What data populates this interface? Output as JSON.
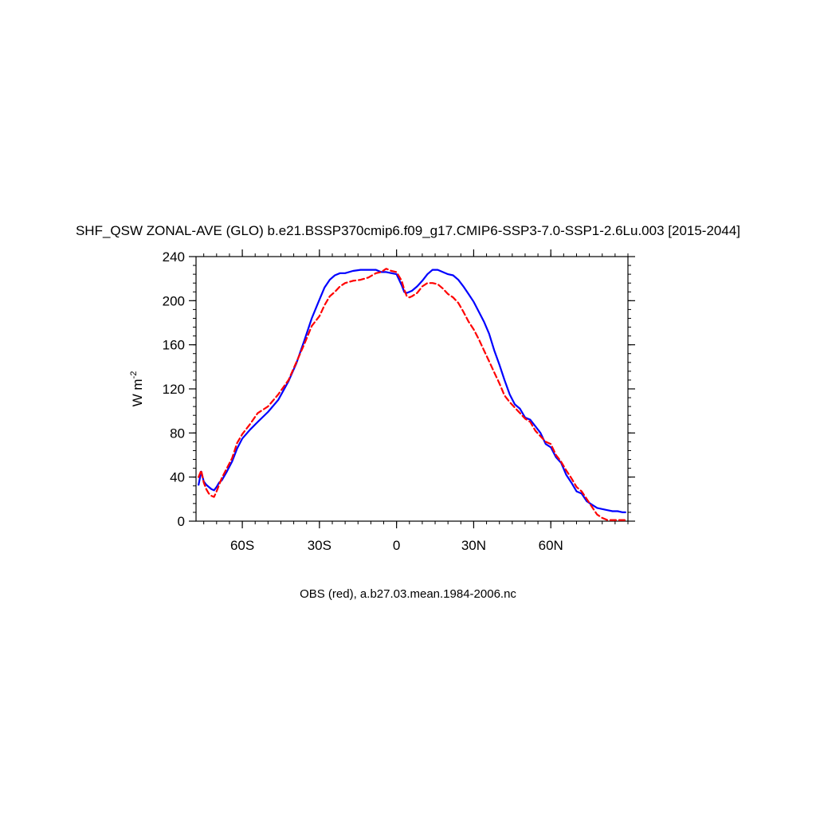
{
  "chart_data": {
    "type": "line",
    "title": "SHF_QSW ZONAL-AVE (GLO) b.e21.BSSP370cmip6.f09_g17.CMIP6-SSP3-7.0-SSP1-2.6Lu.003 [2015-2044]",
    "subtitle": "OBS (red), a.b27.03.mean.1984-2006.nc",
    "ylabel": "W m",
    "ylabel_exp": "-2",
    "xlim": [
      -78,
      90
    ],
    "ylim": [
      0,
      240
    ],
    "x_ticks": [
      {
        "value": -60,
        "label": "60S"
      },
      {
        "value": -30,
        "label": "30S"
      },
      {
        "value": 0,
        "label": "0"
      },
      {
        "value": 30,
        "label": "30N"
      },
      {
        "value": 60,
        "label": "60N"
      }
    ],
    "y_ticks": [
      {
        "value": 0,
        "label": "0"
      },
      {
        "value": 40,
        "label": "40"
      },
      {
        "value": 80,
        "label": "80"
      },
      {
        "value": 120,
        "label": "120"
      },
      {
        "value": 160,
        "label": "160"
      },
      {
        "value": 200,
        "label": "200"
      },
      {
        "value": 240,
        "label": "240"
      }
    ],
    "series": [
      {
        "color": "#0000ff",
        "dash": "solid",
        "x": [
          -77,
          -76,
          -75,
          -74,
          -73,
          -72,
          -71,
          -70,
          -69,
          -68,
          -66,
          -64,
          -62,
          -60,
          -57,
          -54,
          -50,
          -46,
          -42,
          -39,
          -36,
          -33,
          -30,
          -28,
          -26,
          -24,
          -22,
          -20,
          -17,
          -14,
          -11,
          -8,
          -6,
          -4,
          -2,
          0,
          2,
          3,
          4,
          5,
          6,
          8,
          10,
          12,
          14,
          16,
          18,
          20,
          22,
          24,
          26,
          28,
          30,
          32,
          34,
          36,
          38,
          40,
          42,
          44,
          46,
          48,
          50,
          52,
          54,
          56,
          58,
          60,
          62,
          64,
          66,
          68,
          70,
          72,
          74,
          76,
          78,
          80,
          82,
          84,
          86,
          88,
          89
        ],
        "y": [
          33,
          45,
          36,
          33,
          31,
          29,
          28,
          31,
          35,
          37,
          45,
          54,
          66,
          75,
          83,
          90,
          99,
          110,
          127,
          143,
          163,
          184,
          201,
          212,
          219,
          223,
          225,
          225,
          227,
          228,
          228,
          228,
          226,
          226,
          225,
          224,
          214,
          208,
          207,
          208,
          209,
          213,
          218,
          224,
          228,
          228,
          226,
          224,
          223,
          219,
          213,
          206,
          199,
          190,
          181,
          170,
          155,
          142,
          128,
          115,
          106,
          102,
          94,
          92,
          86,
          80,
          70,
          67,
          58,
          53,
          42,
          35,
          27,
          25,
          18,
          15,
          12,
          11,
          10,
          9,
          9,
          8,
          8
        ]
      },
      {
        "color": "#ff0000",
        "dash": "dashed",
        "x": [
          -77,
          -76,
          -75,
          -74,
          -73,
          -72,
          -71,
          -70,
          -69,
          -68,
          -66,
          -64,
          -62,
          -60,
          -57,
          -54,
          -50,
          -46,
          -42,
          -39,
          -36,
          -33,
          -30,
          -28,
          -26,
          -24,
          -22,
          -20,
          -17,
          -14,
          -11,
          -8,
          -6,
          -4,
          -2,
          0,
          2,
          3,
          4,
          5,
          6,
          8,
          10,
          12,
          14,
          16,
          18,
          20,
          22,
          24,
          26,
          28,
          30,
          32,
          34,
          36,
          38,
          40,
          42,
          44,
          46,
          48,
          50,
          52,
          54,
          56,
          58,
          60,
          62,
          64,
          66,
          68,
          70,
          72,
          74,
          76,
          78,
          80,
          82,
          84,
          86,
          88,
          89
        ],
        "y": [
          40,
          46,
          35,
          29,
          25,
          23,
          22,
          27,
          33,
          39,
          48,
          57,
          71,
          79,
          88,
          98,
          104,
          115,
          128,
          144,
          160,
          177,
          186,
          196,
          204,
          208,
          213,
          216,
          218,
          219,
          221,
          225,
          226,
          229,
          227,
          226,
          218,
          210,
          204,
          203,
          204,
          207,
          213,
          216,
          216,
          215,
          211,
          206,
          203,
          198,
          190,
          181,
          174,
          165,
          155,
          145,
          135,
          125,
          114,
          108,
          103,
          98,
          93,
          90,
          82,
          77,
          72,
          70,
          60,
          54,
          46,
          39,
          31,
          27,
          20,
          13,
          6,
          3,
          1,
          1,
          1,
          1,
          1
        ]
      }
    ]
  }
}
